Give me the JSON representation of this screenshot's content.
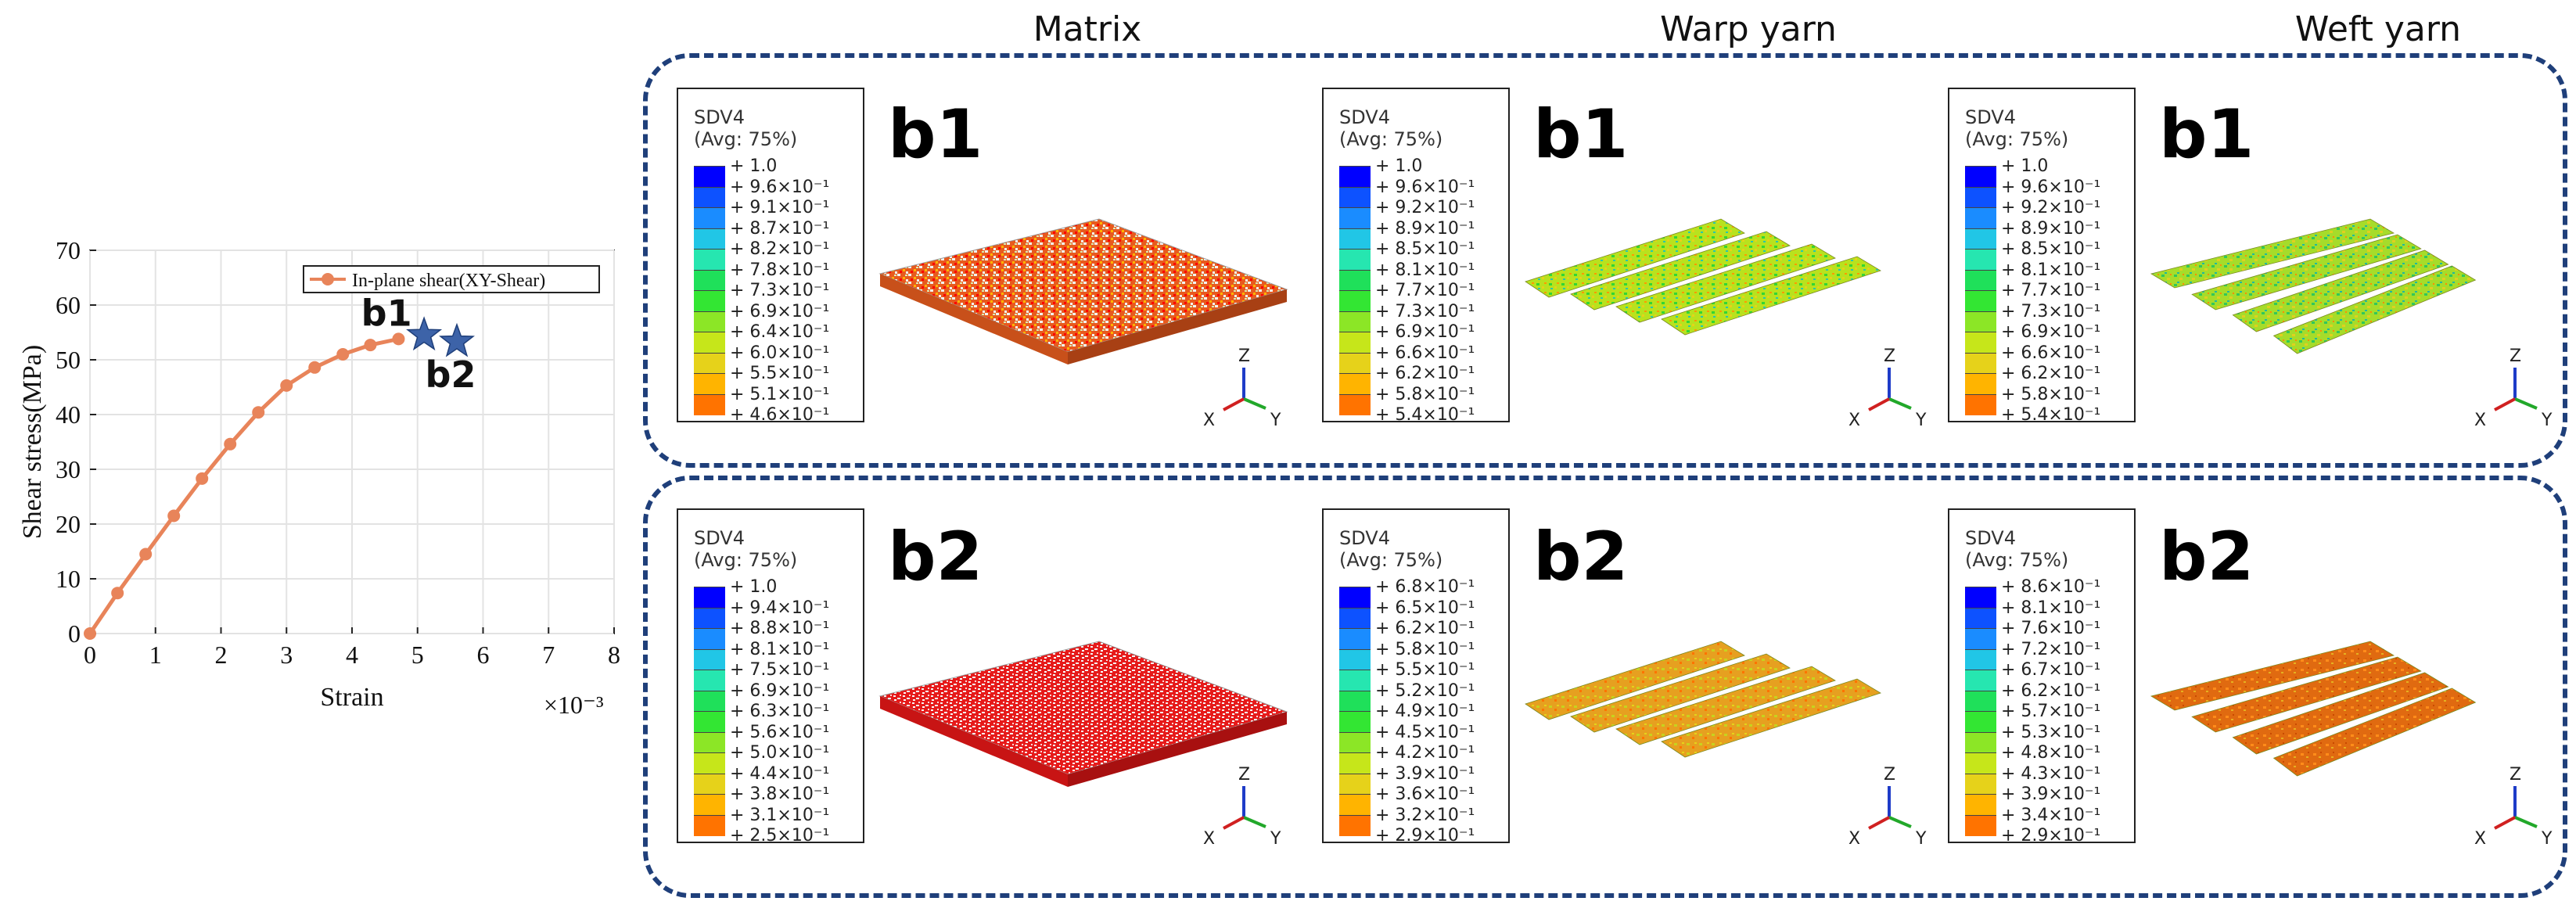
{
  "column_headers": [
    "Matrix",
    "Warp yarn",
    "Weft yarn"
  ],
  "chart_data": {
    "type": "line",
    "xlabel": "Strain",
    "ylabel": "Shear stress(MPa)",
    "x_scale_label": "×10⁻³",
    "xlim": [
      0,
      8
    ],
    "ylim": [
      0,
      70
    ],
    "xticks": [
      "0",
      "1",
      "2",
      "3",
      "4",
      "5",
      "6",
      "7",
      "8"
    ],
    "yticks": [
      "0",
      "10",
      "20",
      "30",
      "40",
      "50",
      "60",
      "70"
    ],
    "grid": true,
    "legend_position": "top-right",
    "series": [
      {
        "name": "In-plane shear(XY-Shear)",
        "color": "#e8845a",
        "x": [
          0,
          0.42,
          0.85,
          1.28,
          1.71,
          2.14,
          2.57,
          3.0,
          3.43,
          3.86,
          4.28,
          4.71
        ],
        "y": [
          0,
          7.4,
          14.5,
          21.5,
          28.3,
          34.6,
          40.4,
          45.3,
          48.6,
          51.0,
          52.7,
          53.8
        ]
      }
    ],
    "markers": [
      {
        "label": "b1",
        "x": 5.1,
        "y": 54.5,
        "color": "#3d63a8"
      },
      {
        "label": "b2",
        "x": 5.6,
        "y": 53.3,
        "color": "#3d63a8"
      }
    ]
  },
  "legend_colors": [
    "#0000ff",
    "#0d52ff",
    "#1a8cff",
    "#21c6e6",
    "#26e6b0",
    "#1fe05a",
    "#33e633",
    "#8ce626",
    "#c6e61a",
    "#e6d21a",
    "#ffb400",
    "#ff7300",
    "#ff0000"
  ],
  "panels": [
    {
      "row": "b1",
      "column": "Matrix",
      "label": "b1",
      "legend_title": "SDV4",
      "legend_subtitle": "(Avg: 75%)",
      "values": [
        "+ 1.0",
        "+ 9.6×10⁻¹",
        "+ 9.1×10⁻¹",
        "+ 8.7×10⁻¹",
        "+ 8.2×10⁻¹",
        "+ 7.8×10⁻¹",
        "+ 7.3×10⁻¹",
        "+ 6.9×10⁻¹",
        "+ 6.4×10⁻¹",
        "+ 6.0×10⁻¹",
        "+ 5.5×10⁻¹",
        "+ 5.1×10⁻¹",
        "+ 4.6×10⁻¹"
      ]
    },
    {
      "row": "b1",
      "column": "Warp yarn",
      "label": "b1",
      "legend_title": "SDV4",
      "legend_subtitle": "(Avg: 75%)",
      "values": [
        "+ 1.0",
        "+ 9.6×10⁻¹",
        "+ 9.2×10⁻¹",
        "+ 8.9×10⁻¹",
        "+ 8.5×10⁻¹",
        "+ 8.1×10⁻¹",
        "+ 7.7×10⁻¹",
        "+ 7.3×10⁻¹",
        "+ 6.9×10⁻¹",
        "+ 6.6×10⁻¹",
        "+ 6.2×10⁻¹",
        "+ 5.8×10⁻¹",
        "+ 5.4×10⁻¹"
      ]
    },
    {
      "row": "b1",
      "column": "Weft yarn",
      "label": "b1",
      "legend_title": "SDV4",
      "legend_subtitle": "(Avg: 75%)",
      "values": [
        "+ 1.0",
        "+ 9.6×10⁻¹",
        "+ 9.2×10⁻¹",
        "+ 8.9×10⁻¹",
        "+ 8.5×10⁻¹",
        "+ 8.1×10⁻¹",
        "+ 7.7×10⁻¹",
        "+ 7.3×10⁻¹",
        "+ 6.9×10⁻¹",
        "+ 6.6×10⁻¹",
        "+ 6.2×10⁻¹",
        "+ 5.8×10⁻¹",
        "+ 5.4×10⁻¹"
      ]
    },
    {
      "row": "b2",
      "column": "Matrix",
      "label": "b2",
      "legend_title": "SDV4",
      "legend_subtitle": "(Avg: 75%)",
      "values": [
        "+ 1.0",
        "+ 9.4×10⁻¹",
        "+ 8.8×10⁻¹",
        "+ 8.1×10⁻¹",
        "+ 7.5×10⁻¹",
        "+ 6.9×10⁻¹",
        "+ 6.3×10⁻¹",
        "+ 5.6×10⁻¹",
        "+ 5.0×10⁻¹",
        "+ 4.4×10⁻¹",
        "+ 3.8×10⁻¹",
        "+ 3.1×10⁻¹",
        "+ 2.5×10⁻¹"
      ]
    },
    {
      "row": "b2",
      "column": "Warp yarn",
      "label": "b2",
      "legend_title": "SDV4",
      "legend_subtitle": "(Avg: 75%)",
      "values": [
        "+ 6.8×10⁻¹",
        "+ 6.5×10⁻¹",
        "+ 6.2×10⁻¹",
        "+ 5.8×10⁻¹",
        "+ 5.5×10⁻¹",
        "+ 5.2×10⁻¹",
        "+ 4.9×10⁻¹",
        "+ 4.5×10⁻¹",
        "+ 4.2×10⁻¹",
        "+ 3.9×10⁻¹",
        "+ 3.6×10⁻¹",
        "+ 3.2×10⁻¹",
        "+ 2.9×10⁻¹"
      ]
    },
    {
      "row": "b2",
      "column": "Weft yarn",
      "label": "b2",
      "legend_title": "SDV4",
      "legend_subtitle": "(Avg: 75%)",
      "values": [
        "+ 8.6×10⁻¹",
        "+ 8.1×10⁻¹",
        "+ 7.6×10⁻¹",
        "+ 7.2×10⁻¹",
        "+ 6.7×10⁻¹",
        "+ 6.2×10⁻¹",
        "+ 5.7×10⁻¹",
        "+ 5.3×10⁻¹",
        "+ 4.8×10⁻¹",
        "+ 4.3×10⁻¹",
        "+ 3.9×10⁻¹",
        "+ 3.4×10⁻¹",
        "+ 2.9×10⁻¹"
      ]
    }
  ],
  "triad_axes": {
    "x": "X",
    "y": "Y",
    "z": "Z"
  }
}
